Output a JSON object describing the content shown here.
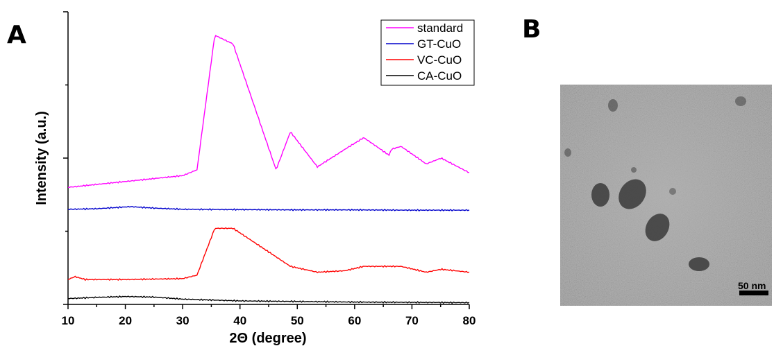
{
  "panels": {
    "a_label": "A",
    "b_label": "B"
  },
  "chart_data": {
    "type": "line",
    "xlabel": "2Θ (degree)",
    "ylabel": "Intensity (a.u.)",
    "xlim": [
      10,
      80
    ],
    "xticks": [
      "10",
      "20",
      "30",
      "40",
      "50",
      "60",
      "70",
      "80"
    ],
    "legend_position": "top-right",
    "legend": [
      "standard",
      "GT-CuO",
      "VC-CuO",
      "CA-CuO"
    ],
    "series": [
      {
        "name": "standard",
        "color": "#ff00ff",
        "x": [
          10,
          20,
          30,
          32.5,
          35.6,
          38.8,
          46.3,
          48.8,
          53.5,
          58.3,
          61.6,
          66.0,
          66.4,
          68.1,
          72.5,
          75.1,
          80
        ],
        "y": [
          0.4,
          0.42,
          0.44,
          0.46,
          0.92,
          0.89,
          0.46,
          0.59,
          0.47,
          0.53,
          0.57,
          0.51,
          0.53,
          0.54,
          0.48,
          0.5,
          0.45
        ]
      },
      {
        "name": "GT-CuO",
        "color": "#0000cc",
        "x": [
          10,
          15,
          20,
          21,
          25,
          30,
          40,
          50,
          60,
          70,
          80
        ],
        "y": [
          0.325,
          0.327,
          0.333,
          0.334,
          0.329,
          0.325,
          0.324,
          0.323,
          0.323,
          0.322,
          0.322
        ]
      },
      {
        "name": "VC-CuO",
        "color": "#ff0000",
        "x": [
          10,
          11.2,
          13,
          20,
          30,
          32.5,
          35.6,
          38.8,
          48.8,
          53.5,
          58.3,
          61.6,
          66.0,
          68.1,
          72.5,
          75.1,
          80
        ],
        "y": [
          0.085,
          0.095,
          0.085,
          0.085,
          0.088,
          0.1,
          0.26,
          0.26,
          0.13,
          0.11,
          0.115,
          0.13,
          0.13,
          0.13,
          0.11,
          0.12,
          0.11
        ]
      },
      {
        "name": "CA-CuO",
        "color": "#000000",
        "x": [
          10,
          15,
          20,
          25,
          30,
          40,
          50,
          60,
          70,
          80
        ],
        "y": [
          0.02,
          0.024,
          0.027,
          0.025,
          0.018,
          0.012,
          0.01,
          0.008,
          0.007,
          0.006
        ]
      }
    ]
  },
  "tem": {
    "scale_bar_label": "50 nm"
  }
}
